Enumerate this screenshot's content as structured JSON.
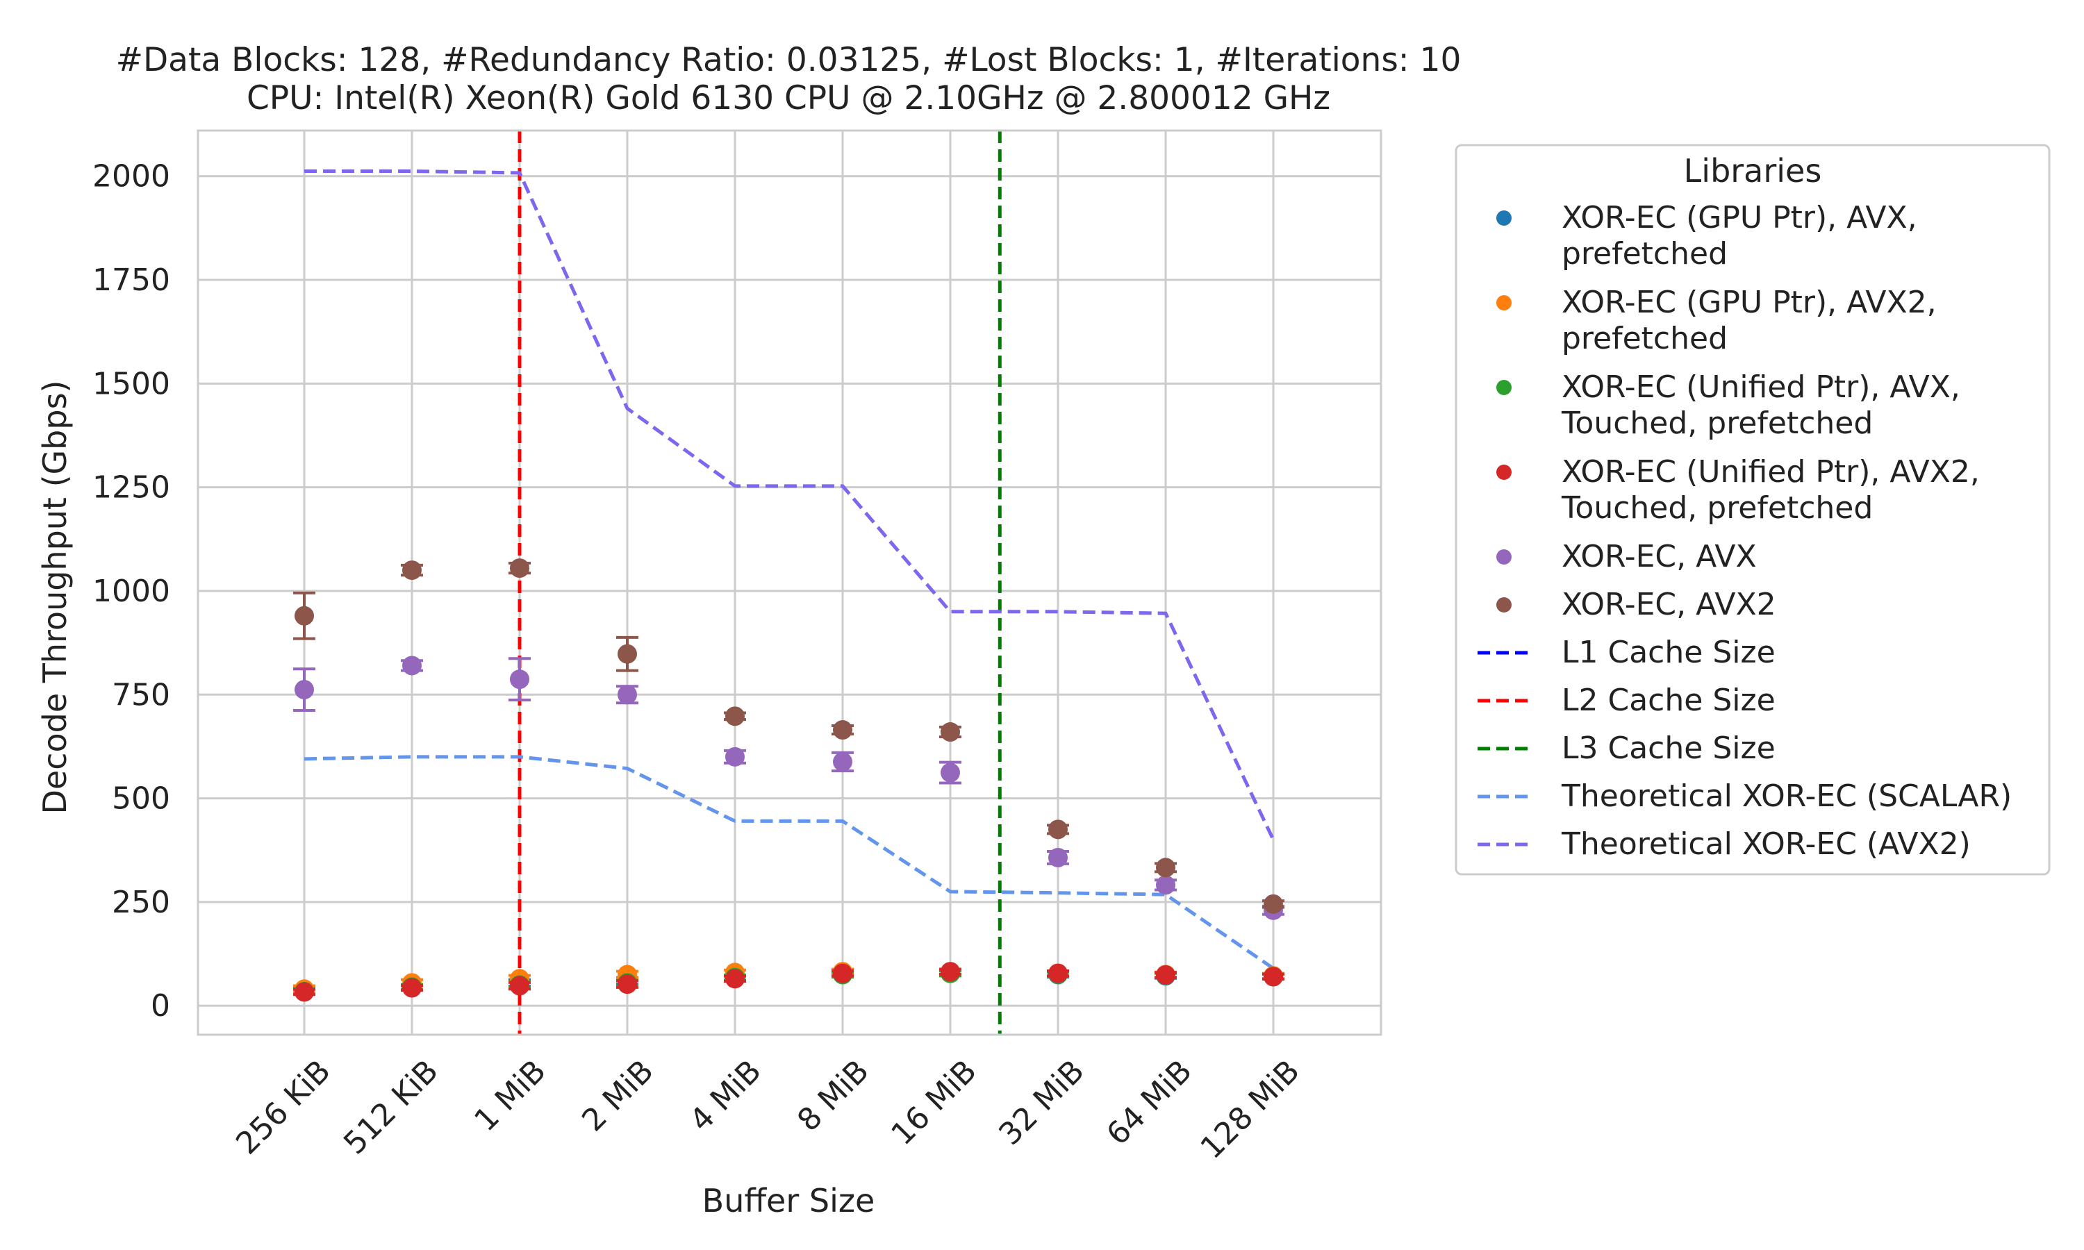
{
  "chart_data": {
    "type": "scatter",
    "title": "#Data Blocks: 128, #Redundancy Ratio: 0.03125, #Lost Blocks: 1, #Iterations: 10",
    "subtitle": "CPU: Intel(R) Xeon(R) Gold 6130 CPU @ 2.10GHz @ 2.800012 GHz",
    "xlabel": "Buffer Size",
    "ylabel": "Decode Throughput (Gbps)",
    "categories": [
      "256 KiB",
      "512 KiB",
      "1 MiB",
      "2 MiB",
      "4 MiB",
      "8 MiB",
      "16 MiB",
      "32 MiB",
      "64 MiB",
      "128 MiB"
    ],
    "ylim": [
      -70,
      2110
    ],
    "yticks": [
      0,
      250,
      500,
      750,
      1000,
      1250,
      1500,
      1750,
      2000
    ],
    "grid": true,
    "legend": {
      "title": "Libraries",
      "placement": "outside right",
      "entries": [
        {
          "kind": "point",
          "color": "#1f77b4",
          "lines": [
            "XOR-EC (GPU Ptr), AVX,",
            "prefetched"
          ]
        },
        {
          "kind": "point",
          "color": "#ff7f0e",
          "lines": [
            "XOR-EC (GPU Ptr), AVX2,",
            "prefetched"
          ]
        },
        {
          "kind": "point",
          "color": "#2ca02c",
          "lines": [
            "XOR-EC (Unified Ptr), AVX,",
            "Touched, prefetched"
          ]
        },
        {
          "kind": "point",
          "color": "#d62728",
          "lines": [
            "XOR-EC (Unified Ptr), AVX2,",
            "Touched, prefetched"
          ]
        },
        {
          "kind": "point",
          "color": "#9467bd",
          "lines": [
            "XOR-EC, AVX"
          ]
        },
        {
          "kind": "point",
          "color": "#8c564b",
          "lines": [
            "XOR-EC, AVX2"
          ]
        },
        {
          "kind": "line",
          "color": "#0000ff",
          "lines": [
            "L1 Cache Size"
          ]
        },
        {
          "kind": "line",
          "color": "#ff0000",
          "lines": [
            "L2 Cache Size"
          ]
        },
        {
          "kind": "line",
          "color": "#008000",
          "lines": [
            "L3 Cache Size"
          ]
        },
        {
          "kind": "line",
          "color": "#6495ed",
          "lines": [
            "Theoretical XOR-EC (SCALAR)"
          ]
        },
        {
          "kind": "line",
          "color": "#7b68ee",
          "lines": [
            "Theoretical XOR-EC (AVX2)"
          ]
        }
      ]
    },
    "points": [
      {
        "name": "XOR-EC (GPU Ptr), AVX, prefetched",
        "color": "#1f77b4",
        "values": [
          35,
          45,
          55,
          60,
          68,
          75,
          78,
          75,
          72,
          70
        ],
        "err": [
          8,
          6,
          8,
          8,
          6,
          6,
          6,
          6,
          6,
          6
        ]
      },
      {
        "name": "XOR-EC (GPU Ptr), AVX2, prefetched",
        "color": "#ff7f0e",
        "values": [
          40,
          55,
          65,
          75,
          80,
          82,
          82,
          78,
          75,
          72
        ],
        "err": [
          8,
          8,
          8,
          8,
          6,
          6,
          6,
          6,
          6,
          6
        ]
      },
      {
        "name": "XOR-EC (Unified Ptr), AVX, Touched, prefetched",
        "color": "#2ca02c",
        "values": [
          34,
          45,
          50,
          55,
          68,
          75,
          78,
          76,
          73,
          70
        ],
        "err": [
          6,
          6,
          6,
          6,
          6,
          6,
          6,
          6,
          6,
          6
        ]
      },
      {
        "name": "XOR-EC (Unified Ptr), AVX2, Touched, prefetched",
        "color": "#d62728",
        "values": [
          33,
          43,
          48,
          52,
          65,
          78,
          82,
          78,
          74,
          70
        ],
        "err": [
          6,
          6,
          8,
          8,
          6,
          6,
          6,
          6,
          6,
          6
        ]
      },
      {
        "name": "XOR-EC, AVX",
        "color": "#9467bd",
        "values": [
          762,
          820,
          787,
          750,
          600,
          588,
          562,
          357,
          291,
          230
        ],
        "err": [
          50,
          12,
          50,
          20,
          15,
          22,
          25,
          15,
          12,
          10
        ]
      },
      {
        "name": "XOR-EC, AVX2",
        "color": "#8c564b",
        "values": [
          940,
          1050,
          1055,
          848,
          698,
          665,
          660,
          425,
          333,
          245
        ],
        "err": [
          55,
          12,
          12,
          40,
          8,
          10,
          12,
          10,
          10,
          8
        ]
      }
    ],
    "lines": [
      {
        "name": "Theoretical XOR-EC (SCALAR)",
        "color": "#6495ed",
        "values": [
          595,
          600,
          600,
          572,
          445,
          445,
          275,
          272,
          268,
          90
        ]
      },
      {
        "name": "Theoretical XOR-EC (AVX2)",
        "color": "#7b68ee",
        "values": [
          2012,
          2012,
          2008,
          1440,
          1253,
          1253,
          950,
          950,
          946,
          400
        ]
      }
    ],
    "vlines": [
      {
        "name": "L2 Cache Size",
        "color": "#ff0000",
        "x": 2
      },
      {
        "name": "L3 Cache Size",
        "color": "#008000",
        "x": 6.46
      }
    ]
  }
}
